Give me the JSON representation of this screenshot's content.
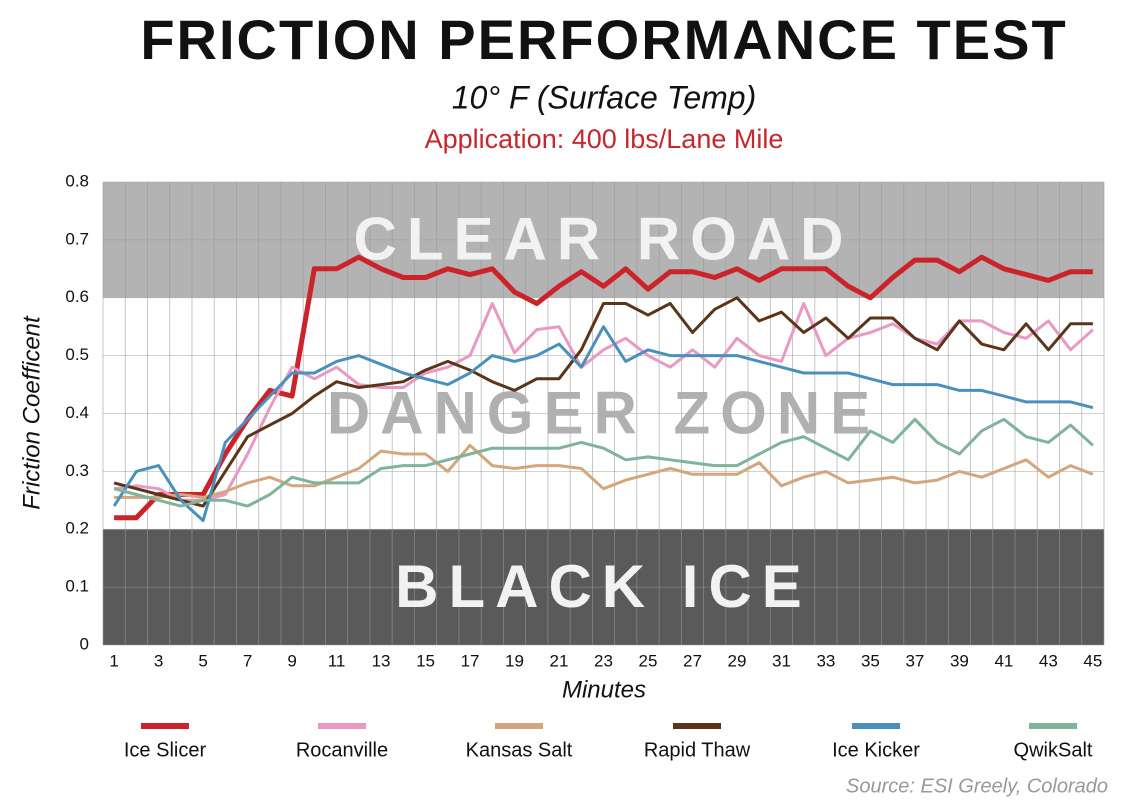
{
  "chart_data": {
    "type": "line",
    "title": "FRICTION PERFORMANCE TEST",
    "subtitle": "10° F (Surface Temp)",
    "application": "Application: 400 lbs/Lane Mile",
    "x_label": "Minutes",
    "y_label": "Friction Coefficent",
    "source": "Source: ESI Greely, Colorado",
    "categories": [
      "1",
      null,
      "3",
      null,
      "5",
      null,
      "7",
      null,
      "9",
      null,
      "11",
      null,
      "13",
      null,
      "15",
      null,
      "17",
      null,
      "19",
      null,
      "21",
      null,
      "23",
      null,
      "25",
      null,
      "27",
      null,
      "29",
      null,
      "31",
      null,
      "33",
      null,
      "35",
      null,
      "37",
      null,
      "39",
      null,
      "41",
      null,
      "43",
      null,
      "45"
    ],
    "ylim": [
      0,
      0.8
    ],
    "yticks": [
      0,
      0.1,
      0.2,
      0.3,
      0.4,
      0.5,
      0.6,
      0.7,
      0.8
    ],
    "grid": true,
    "zones": [
      {
        "label": "BLACK ICE",
        "from": 0,
        "to": 0.2,
        "color": "#5a5a5a",
        "text_color": "#f2f2f2"
      },
      {
        "label": "DANGER ZONE",
        "from": 0.2,
        "to": 0.6,
        "color": "#ffffff",
        "text_color": "#b0b0b0"
      },
      {
        "label": "CLEAR ROAD",
        "from": 0.6,
        "to": 0.8,
        "color": "#b3b3b3",
        "text_color": "#f2f2f2"
      }
    ],
    "series": [
      {
        "name": "Ice Slicer",
        "color": "#cc2229",
        "values": [
          0.22,
          0.22,
          0.26,
          0.26,
          0.26,
          0.33,
          0.39,
          0.44,
          0.43,
          0.65,
          0.65,
          0.67,
          0.65,
          0.635,
          0.635,
          0.65,
          0.64,
          0.65,
          0.61,
          0.59,
          0.62,
          0.645,
          0.62,
          0.65,
          0.615,
          0.645,
          0.645,
          0.635,
          0.65,
          0.63,
          0.65,
          0.65,
          0.65,
          0.62,
          0.6,
          0.635,
          0.665,
          0.665,
          0.645,
          0.67,
          0.65,
          0.64,
          0.63,
          0.645,
          0.645
        ]
      },
      {
        "name": "Rocanville",
        "color": "#e899c4",
        "values": [
          0.27,
          0.275,
          0.27,
          0.25,
          0.25,
          0.26,
          0.33,
          0.41,
          0.48,
          0.46,
          0.48,
          0.45,
          0.445,
          0.445,
          0.47,
          0.48,
          0.5,
          0.59,
          0.505,
          0.545,
          0.55,
          0.48,
          0.51,
          0.53,
          0.5,
          0.48,
          0.51,
          0.48,
          0.53,
          0.5,
          0.49,
          0.59,
          0.5,
          0.53,
          0.54,
          0.555,
          0.53,
          0.52,
          0.56,
          0.56,
          0.54,
          0.53,
          0.56,
          0.51,
          0.545
        ]
      },
      {
        "name": "Kansas Salt",
        "color": "#d4a67c",
        "values": [
          0.255,
          0.255,
          0.255,
          0.26,
          0.255,
          0.265,
          0.28,
          0.29,
          0.275,
          0.275,
          0.29,
          0.305,
          0.335,
          0.33,
          0.33,
          0.3,
          0.345,
          0.31,
          0.305,
          0.31,
          0.31,
          0.305,
          0.27,
          0.285,
          0.295,
          0.305,
          0.295,
          0.295,
          0.295,
          0.315,
          0.275,
          0.29,
          0.3,
          0.28,
          0.285,
          0.29,
          0.28,
          0.285,
          0.3,
          0.29,
          0.305,
          0.32,
          0.29,
          0.31,
          0.295
        ]
      },
      {
        "name": "Rapid Thaw",
        "color": "#5c3519",
        "values": [
          0.28,
          0.27,
          0.26,
          0.25,
          0.24,
          0.3,
          0.36,
          0.38,
          0.4,
          0.43,
          0.455,
          0.445,
          0.45,
          0.455,
          0.475,
          0.49,
          0.475,
          0.455,
          0.44,
          0.46,
          0.46,
          0.51,
          0.59,
          0.59,
          0.57,
          0.59,
          0.54,
          0.58,
          0.6,
          0.56,
          0.575,
          0.54,
          0.565,
          0.53,
          0.565,
          0.565,
          0.53,
          0.51,
          0.56,
          0.52,
          0.51,
          0.555,
          0.51,
          0.555,
          0.555
        ]
      },
      {
        "name": "Ice Kicker",
        "color": "#4a90bd",
        "values": [
          0.24,
          0.3,
          0.31,
          0.25,
          0.215,
          0.35,
          0.39,
          0.43,
          0.47,
          0.47,
          0.49,
          0.5,
          0.485,
          0.47,
          0.46,
          0.45,
          0.47,
          0.5,
          0.49,
          0.5,
          0.52,
          0.48,
          0.55,
          0.49,
          0.51,
          0.5,
          0.5,
          0.5,
          0.5,
          0.49,
          0.48,
          0.47,
          0.47,
          0.47,
          0.46,
          0.45,
          0.45,
          0.45,
          0.44,
          0.44,
          0.43,
          0.42,
          0.42,
          0.42,
          0.41
        ]
      },
      {
        "name": "QwikSalt",
        "color": "#7fb39a",
        "values": [
          0.27,
          0.26,
          0.25,
          0.24,
          0.25,
          0.25,
          0.24,
          0.26,
          0.29,
          0.28,
          0.28,
          0.28,
          0.305,
          0.31,
          0.31,
          0.32,
          0.33,
          0.34,
          0.34,
          0.34,
          0.34,
          0.35,
          0.34,
          0.32,
          0.325,
          0.32,
          0.315,
          0.31,
          0.31,
          0.33,
          0.35,
          0.36,
          0.34,
          0.32,
          0.37,
          0.35,
          0.39,
          0.35,
          0.33,
          0.37,
          0.39,
          0.36,
          0.35,
          0.38,
          0.345
        ]
      }
    ]
  }
}
